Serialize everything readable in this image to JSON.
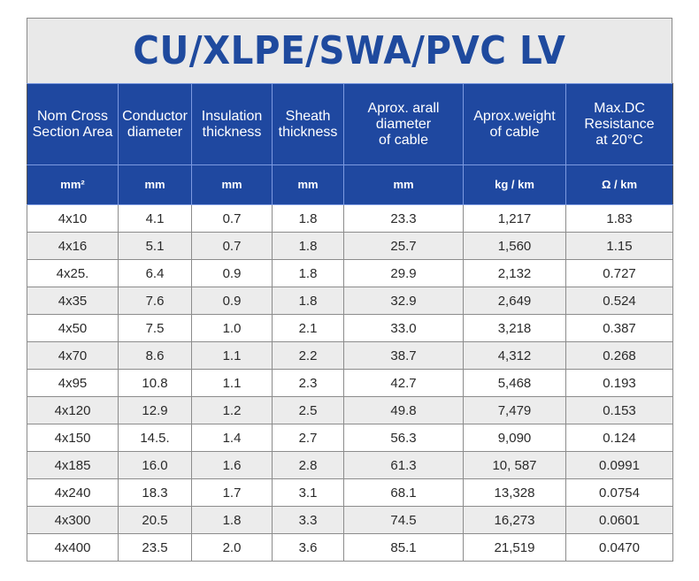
{
  "title": "CU/XLPE/SWA/PVC LV",
  "colors": {
    "header_bg": "#1f48a0",
    "title_color": "#1f4a9e",
    "title_bg": "#e9e9e9",
    "stripe": "#ececec"
  },
  "columns": [
    {
      "header_lines": [
        "Nom Cross",
        "Section Area"
      ],
      "unit": "mm²"
    },
    {
      "header_lines": [
        "Conductor",
        "diameter"
      ],
      "unit": "mm"
    },
    {
      "header_lines": [
        "Insulation",
        "thickness"
      ],
      "unit": "mm"
    },
    {
      "header_lines": [
        "Sheath",
        "thickness"
      ],
      "unit": "mm"
    },
    {
      "header_lines": [
        "Aprox. arall",
        "diameter",
        "of cable"
      ],
      "unit": "mm"
    },
    {
      "header_lines": [
        "Aprox.weight",
        "of cable"
      ],
      "unit": "kg / km"
    },
    {
      "header_lines": [
        "Max.DC",
        "Resistance",
        "at 20°C"
      ],
      "unit": "Ω / km"
    }
  ],
  "rows": [
    [
      "4x10",
      "4.1",
      "0.7",
      "1.8",
      "23.3",
      "1,217",
      "1.83"
    ],
    [
      "4x16",
      "5.1",
      "0.7",
      "1.8",
      "25.7",
      "1,560",
      "1.15"
    ],
    [
      "4x25.",
      "6.4",
      "0.9",
      "1.8",
      "29.9",
      "2,132",
      "0.727"
    ],
    [
      "4x35",
      "7.6",
      "0.9",
      "1.8",
      "32.9",
      "2,649",
      "0.524"
    ],
    [
      "4x50",
      "7.5",
      "1.0",
      "2.1",
      "33.0",
      "3,218",
      "0.387"
    ],
    [
      "4x70",
      "8.6",
      "1.1",
      "2.2",
      "38.7",
      "4,312",
      "0.268"
    ],
    [
      "4x95",
      "10.8",
      "1.1",
      "2.3",
      "42.7",
      "5,468",
      "0.193"
    ],
    [
      "4x120",
      "12.9",
      "1.2",
      "2.5",
      "49.8",
      "7,479",
      "0.153"
    ],
    [
      "4x150",
      "14.5.",
      "1.4",
      "2.7",
      "56.3",
      "9,090",
      "0.124"
    ],
    [
      "4x185",
      "16.0",
      "1.6",
      "2.8",
      "61.3",
      "10, 587",
      "0.0991"
    ],
    [
      "4x240",
      "18.3",
      "1.7",
      "3.1",
      "68.1",
      "13,328",
      "0.0754"
    ],
    [
      "4x300",
      "20.5",
      "1.8",
      "3.3",
      "74.5",
      "16,273",
      "0.0601"
    ],
    [
      "4x400",
      "23.5",
      "2.0",
      "3.6",
      "85.1",
      "21,519",
      "0.0470"
    ]
  ]
}
